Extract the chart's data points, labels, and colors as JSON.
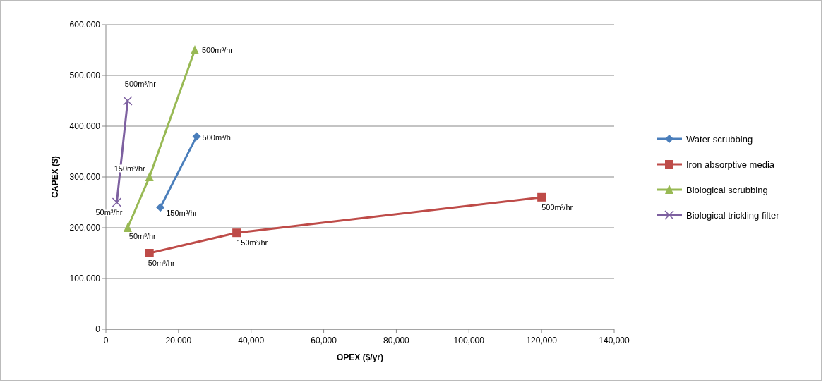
{
  "chart_data": {
    "type": "line",
    "xlabel": "OPEX ($/yr)",
    "ylabel": "CAPEX ($)",
    "xlim": [
      0,
      140000
    ],
    "xticks": [
      {
        "value": 0,
        "label": "0"
      },
      {
        "value": 20000,
        "label": "20,000"
      },
      {
        "value": 40000,
        "label": "40,000"
      },
      {
        "value": 60000,
        "label": "60,000"
      },
      {
        "value": 80000,
        "label": "80,000"
      },
      {
        "value": 100000,
        "label": "100,000"
      },
      {
        "value": 120000,
        "label": "120,000"
      },
      {
        "value": 140000,
        "label": "140,000"
      }
    ],
    "ylim": [
      0,
      600000
    ],
    "yticks": [
      {
        "value": 0,
        "label": "0"
      },
      {
        "value": 100000,
        "label": "100,000"
      },
      {
        "value": 200000,
        "label": "200,000"
      },
      {
        "value": 300000,
        "label": "300,000"
      },
      {
        "value": 400000,
        "label": "400,000"
      },
      {
        "value": 500000,
        "label": "500,000"
      },
      {
        "value": 600000,
        "label": "600,000"
      }
    ],
    "grid": "y",
    "legend": "right",
    "series": [
      {
        "name": "Water scrubbing",
        "color": "#4a7ebb",
        "marker": "diamond",
        "x": [
          15000,
          25000
        ],
        "values": [
          240000,
          380000
        ]
      },
      {
        "name": "Iron absorptive  media",
        "color": "#be4b48",
        "marker": "square",
        "x": [
          12000,
          36000,
          120000
        ],
        "values": [
          150000,
          190000,
          260000
        ]
      },
      {
        "name": "Biological scrubbing",
        "color": "#98b954",
        "marker": "triangle",
        "x": [
          6000,
          12000,
          24500
        ],
        "values": [
          200000,
          300000,
          550000
        ]
      },
      {
        "name": "Biological trickling filter",
        "color": "#7d60a0",
        "marker": "cross",
        "x": [
          3000,
          6000
        ],
        "values": [
          250000,
          450000
        ]
      }
    ],
    "annotations": [
      {
        "text": "150m³/hr",
        "x": 15000,
        "y": 240000
      },
      {
        "text": "500m³/h",
        "x": 25000,
        "y": 380000
      },
      {
        "text": "50m³/hr",
        "x": 12000,
        "y": 150000
      },
      {
        "text": "150m³/hr",
        "x": 36000,
        "y": 190000
      },
      {
        "text": "500m³/hr",
        "x": 120000,
        "y": 260000
      },
      {
        "text": "50m³/hr",
        "x": 6000,
        "y": 200000
      },
      {
        "text": "150m³/hr",
        "x": 12000,
        "y": 300000
      },
      {
        "text": "500m³/hr",
        "x": 24500,
        "y": 550000
      },
      {
        "text": "50m³/hr",
        "x": 3000,
        "y": 250000
      },
      {
        "text": "500m³/hr",
        "x": 6000,
        "y": 450000
      }
    ]
  }
}
